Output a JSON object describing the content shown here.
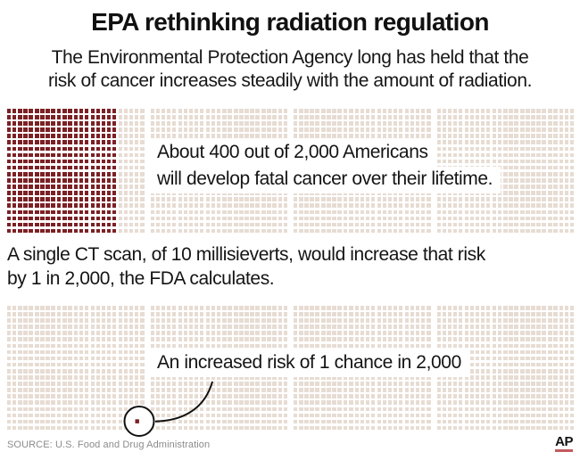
{
  "title": "EPA rethinking radiation regulation",
  "subtitle": {
    "line1": "The Environmental Protection Agency long has held that the",
    "line2": "risk of cancer increases steadily with the amount of radiation."
  },
  "caption_baseline": {
    "line1": "About 400 out of 2,000 Americans",
    "line2": "will develop fatal cancer over their lifetime."
  },
  "middle_paragraph": {
    "line1": "A single CT scan, of 10 millisieverts, would increase that risk",
    "line2": "by 1 in 2,000, the FDA calculates."
  },
  "annotation_label": "An increased risk of 1 chance in 2,000",
  "source": "SOURCE: U.S. Food and Drug Administration",
  "logo_text": "AP",
  "colors": {
    "filled": "#7b2125",
    "empty": "#e7dcd3",
    "callout_stroke": "#111111",
    "logo_underline": "#c25b5f",
    "source_text": "#8b8b8b"
  },
  "waffle": {
    "rows": 20,
    "blocks": 4,
    "groups_per_block": 5,
    "cols_per_group": 5,
    "total_units": 2000,
    "grid1": {
      "filled_columns": 20,
      "filled_units": 400
    },
    "grid2": {
      "highlight_global_col": 23,
      "highlight_row": 18,
      "filled_units": 1
    }
  },
  "chart_data": {
    "type": "waffle",
    "title": "EPA rethinking radiation regulation",
    "subtitle": "The Environmental Protection Agency long has held that the risk of cancer increases steadily with the amount of radiation.",
    "units_total": 2000,
    "layout": {
      "rows": 20,
      "columns": 100,
      "blocks": 4,
      "groups_per_block": 5,
      "cols_per_group": 5,
      "legend": "none",
      "grid": "unit squares"
    },
    "grids": [
      {
        "name": "baseline-lifetime-cancer-risk",
        "filled_units": 400,
        "total_units": 2000,
        "caption": "About 400 out of 2,000 Americans will develop fatal cancer over their lifetime."
      },
      {
        "name": "added-risk-from-single-ct-scan",
        "filled_units": 1,
        "total_units": 2000,
        "caption": "An increased risk of 1 chance in 2,000",
        "note": "A single CT scan, of 10 millisieverts, would increase that risk by 1 in 2,000, the FDA calculates."
      }
    ],
    "source": "SOURCE: U.S. Food and Drug Administration"
  }
}
